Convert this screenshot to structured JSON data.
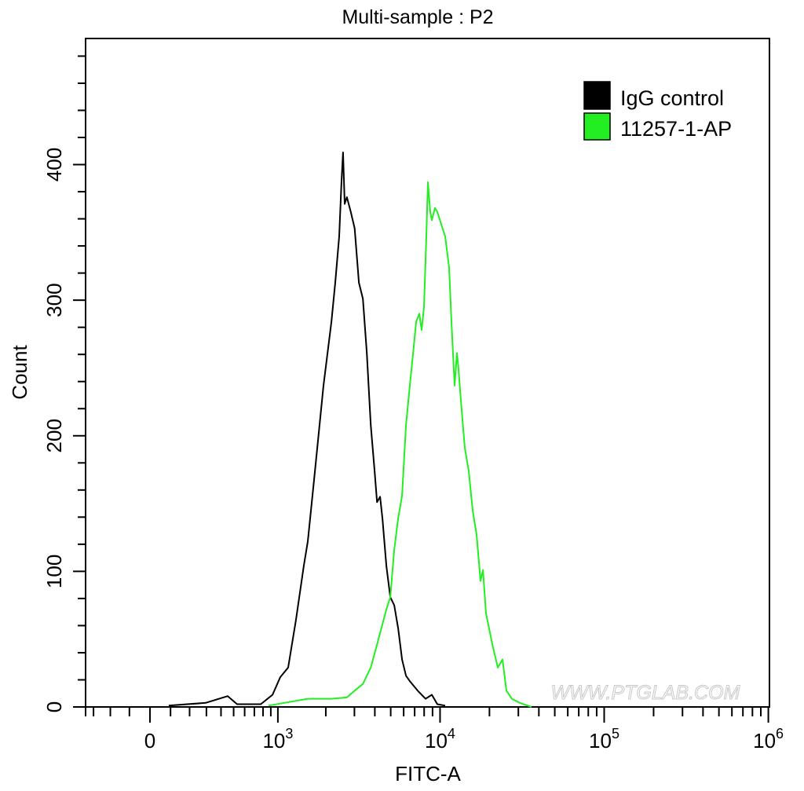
{
  "chart_data": {
    "type": "line",
    "title": "Multi-sample : P2",
    "xlabel": "FITC-A",
    "ylabel": "Count",
    "x_scale": "biexponential",
    "xlim": [
      -350,
      1000000
    ],
    "ylim": [
      0,
      493
    ],
    "x_tick_labels": [
      {
        "value": 0,
        "base": "0",
        "exp": ""
      },
      {
        "value": 1000,
        "base": "10",
        "exp": "3"
      },
      {
        "value": 10000,
        "base": "10",
        "exp": "4"
      },
      {
        "value": 100000,
        "base": "10",
        "exp": "5"
      },
      {
        "value": 1000000,
        "base": "10",
        "exp": "6"
      }
    ],
    "y_ticks": [
      0,
      100,
      200,
      300,
      400
    ],
    "y_tick_labels": [
      "0",
      "100",
      "200",
      "300",
      "400"
    ],
    "grid": false,
    "legend_position": "top-right",
    "series": [
      {
        "name": "IgG control",
        "color": "#000000",
        "points": [
          [
            91,
            1
          ],
          [
            295,
            3
          ],
          [
            451,
            8
          ],
          [
            530,
            2
          ],
          [
            773,
            2
          ],
          [
            923,
            9
          ],
          [
            1036,
            22
          ],
          [
            1163,
            29
          ],
          [
            1303,
            64
          ],
          [
            1460,
            104
          ],
          [
            1546,
            122
          ],
          [
            1693,
            168
          ],
          [
            1830,
            208
          ],
          [
            1936,
            237
          ],
          [
            2165,
            284
          ],
          [
            2288,
            313
          ],
          [
            2418,
            347
          ],
          [
            2500,
            388
          ],
          [
            2555,
            409
          ],
          [
            2613,
            371
          ],
          [
            2698,
            376
          ],
          [
            2849,
            365
          ],
          [
            3010,
            353
          ],
          [
            3194,
            313
          ],
          [
            3382,
            301
          ],
          [
            3574,
            261
          ],
          [
            3776,
            208
          ],
          [
            3988,
            174
          ],
          [
            4125,
            151
          ],
          [
            4309,
            155
          ],
          [
            4453,
            139
          ],
          [
            4706,
            104
          ],
          [
            4973,
            81
          ],
          [
            5253,
            75
          ],
          [
            5551,
            58
          ],
          [
            5865,
            35
          ],
          [
            6197,
            23
          ],
          [
            6546,
            19
          ],
          [
            7309,
            12
          ],
          [
            8160,
            6
          ],
          [
            8913,
            9
          ],
          [
            9627,
            2
          ],
          [
            10742,
            1
          ]
        ]
      },
      {
        "name": "11257-1-AP",
        "color": "#22ee22",
        "points": [
          [
            869,
            1
          ],
          [
            1098,
            3
          ],
          [
            1546,
            6
          ],
          [
            2165,
            6
          ],
          [
            2698,
            7
          ],
          [
            3010,
            12
          ],
          [
            3382,
            17
          ],
          [
            3776,
            29
          ],
          [
            4125,
            46
          ],
          [
            4706,
            72
          ],
          [
            4973,
            81
          ],
          [
            5253,
            116
          ],
          [
            5551,
            139
          ],
          [
            5865,
            156
          ],
          [
            6197,
            208
          ],
          [
            6546,
            237
          ],
          [
            6915,
            266
          ],
          [
            7148,
            284
          ],
          [
            7473,
            290
          ],
          [
            7722,
            278
          ],
          [
            7982,
            295
          ],
          [
            8249,
            347
          ],
          [
            8434,
            387
          ],
          [
            8718,
            365
          ],
          [
            8913,
            359
          ],
          [
            9313,
            368
          ],
          [
            9627,
            365
          ],
          [
            10168,
            356
          ],
          [
            10742,
            347
          ],
          [
            11354,
            324
          ],
          [
            11734,
            284
          ],
          [
            12261,
            237
          ],
          [
            12675,
            261
          ],
          [
            12958,
            249
          ],
          [
            13393,
            226
          ],
          [
            14152,
            191
          ],
          [
            14952,
            174
          ],
          [
            15800,
            145
          ],
          [
            16690,
            127
          ],
          [
            17650,
            93
          ],
          [
            18260,
            101
          ],
          [
            19050,
            69
          ],
          [
            20830,
            46
          ],
          [
            22470,
            29
          ],
          [
            24010,
            35
          ],
          [
            25380,
            12
          ],
          [
            27390,
            6
          ],
          [
            30610,
            3
          ],
          [
            36080,
            0
          ]
        ]
      }
    ],
    "watermark": "WWW.PTGLAB.COM"
  }
}
